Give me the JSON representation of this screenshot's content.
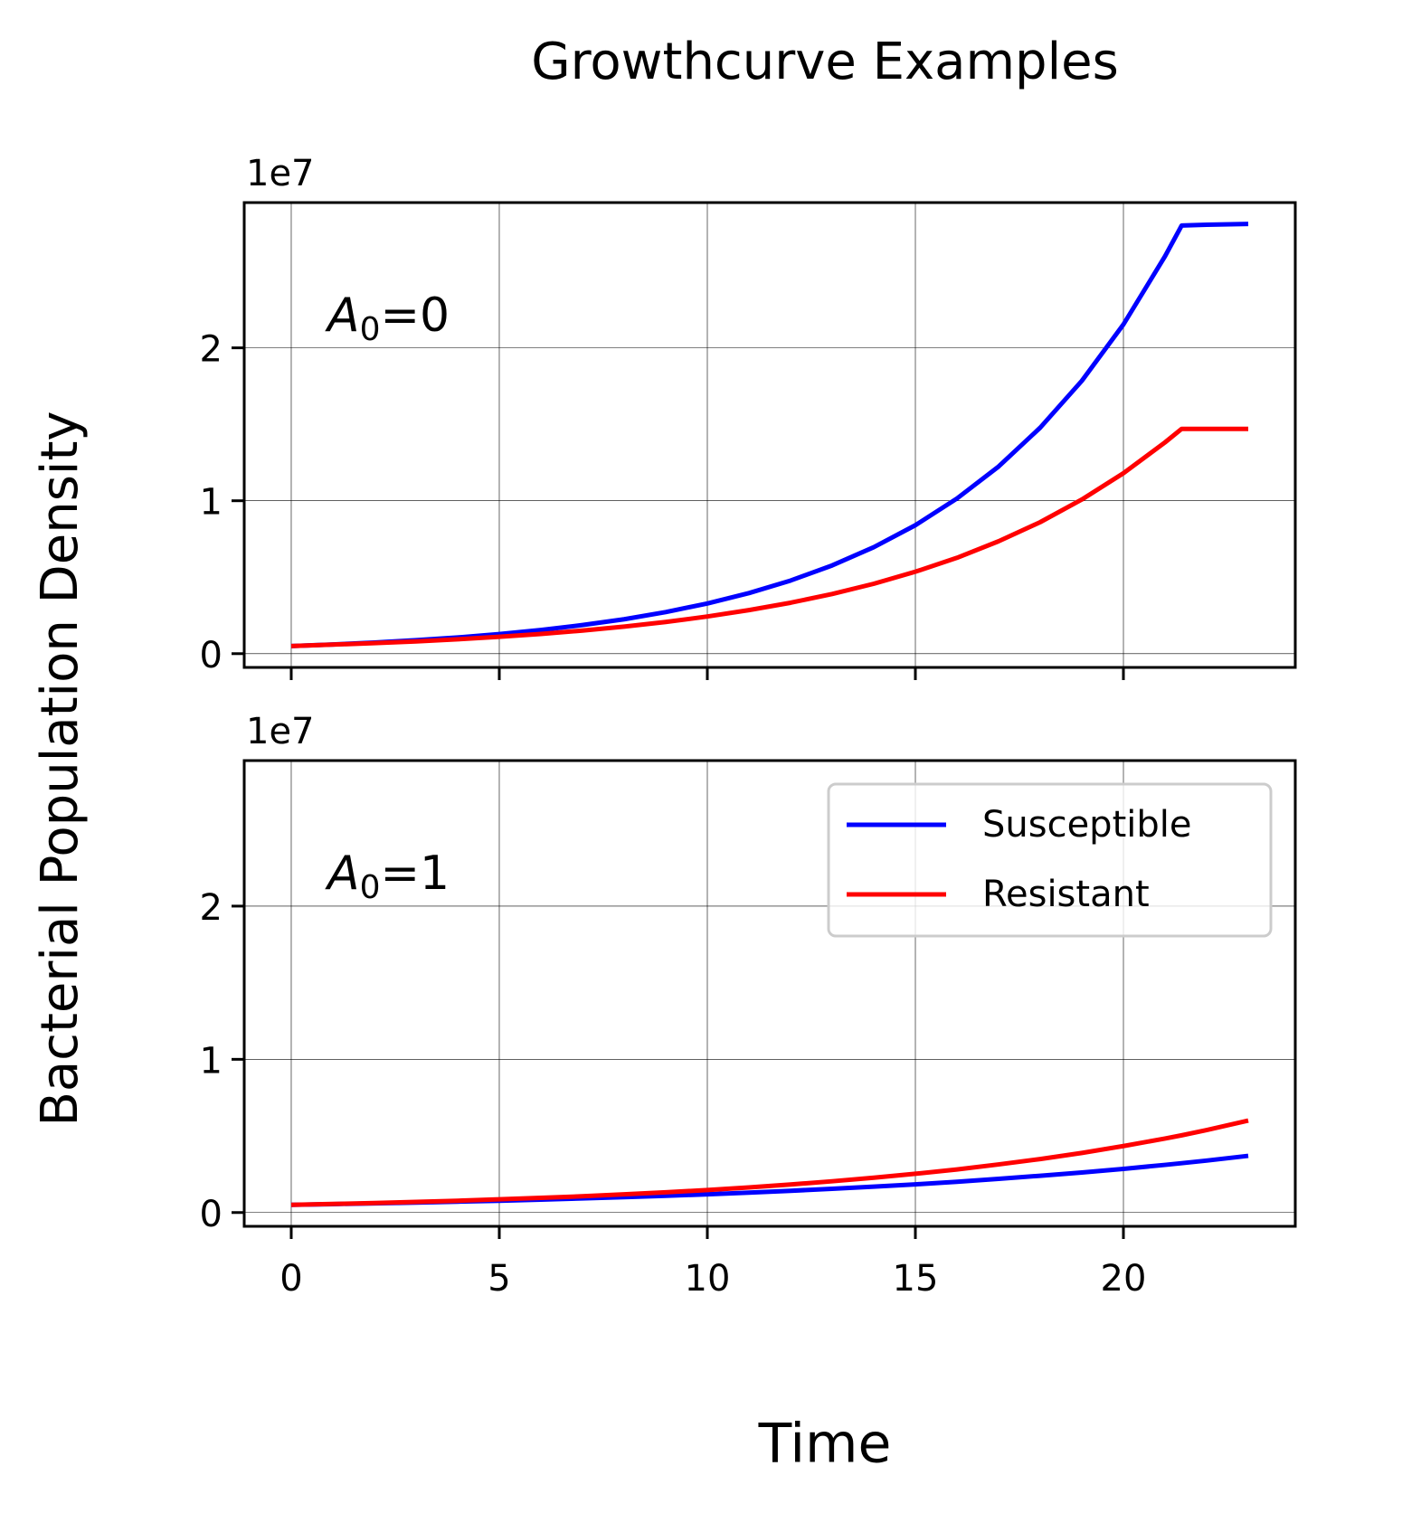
{
  "title": "Growthcurve Examples",
  "xlabel": "Time",
  "ylabel": "Bacterial Population Density",
  "chart_data": [
    {
      "type": "line",
      "offset_label": "1e7",
      "annotation": {
        "symbol": "A",
        "subscript": "0",
        "suffix": "=0"
      },
      "x": [
        0,
        1,
        2,
        3,
        4,
        5,
        6,
        7,
        8,
        9,
        10,
        11,
        12,
        13,
        14,
        15,
        16,
        17,
        18,
        19,
        20,
        21,
        21.4,
        22,
        23
      ],
      "series": [
        {
          "name": "Susceptible",
          "color": "blue",
          "values": [
            0.05,
            0.06,
            0.073,
            0.088,
            0.106,
            0.128,
            0.155,
            0.187,
            0.225,
            0.272,
            0.328,
            0.396,
            0.478,
            0.577,
            0.696,
            0.84,
            1.015,
            1.224,
            1.478,
            1.784,
            2.153,
            2.599,
            2.8,
            2.805,
            2.81
          ]
        },
        {
          "name": "Resistant",
          "color": "red",
          "values": [
            0.05,
            0.059,
            0.069,
            0.08,
            0.094,
            0.11,
            0.129,
            0.151,
            0.177,
            0.207,
            0.243,
            0.285,
            0.333,
            0.39,
            0.457,
            0.536,
            0.627,
            0.735,
            0.86,
            1.008,
            1.18,
            1.382,
            1.47,
            1.47,
            1.47
          ]
        }
      ],
      "xlim": [
        -1.13,
        24.13
      ],
      "ylim": [
        -0.09,
        2.95
      ],
      "xticks": [
        0,
        5,
        10,
        15,
        20
      ],
      "yticks": [
        0,
        1,
        2
      ],
      "show_xticklabels": false,
      "grid": true,
      "legend": null
    },
    {
      "type": "line",
      "offset_label": "1e7",
      "annotation": {
        "symbol": "A",
        "subscript": "0",
        "suffix": "=1"
      },
      "x": [
        0,
        1,
        2,
        3,
        4,
        5,
        6,
        7,
        8,
        9,
        10,
        11,
        12,
        13,
        14,
        15,
        16,
        17,
        18,
        19,
        20,
        21,
        21.4,
        22,
        23
      ],
      "series": [
        {
          "name": "Susceptible",
          "color": "blue",
          "values": [
            0.05,
            0.055,
            0.06,
            0.065,
            0.071,
            0.077,
            0.084,
            0.092,
            0.1,
            0.109,
            0.119,
            0.13,
            0.142,
            0.155,
            0.169,
            0.184,
            0.201,
            0.22,
            0.24,
            0.261,
            0.285,
            0.311,
            0.322,
            0.339,
            0.37
          ]
        },
        {
          "name": "Resistant",
          "color": "red",
          "values": [
            0.05,
            0.056,
            0.062,
            0.069,
            0.077,
            0.086,
            0.096,
            0.106,
            0.119,
            0.132,
            0.147,
            0.164,
            0.183,
            0.204,
            0.227,
            0.253,
            0.281,
            0.314,
            0.349,
            0.389,
            0.434,
            0.483,
            0.504,
            0.538,
            0.6
          ]
        }
      ],
      "xlim": [
        -1.13,
        24.13
      ],
      "ylim": [
        -0.09,
        2.95
      ],
      "xticks": [
        0,
        5,
        10,
        15,
        20
      ],
      "yticks": [
        0,
        1,
        2
      ],
      "show_xticklabels": true,
      "grid": true,
      "legend": "upper right"
    }
  ]
}
